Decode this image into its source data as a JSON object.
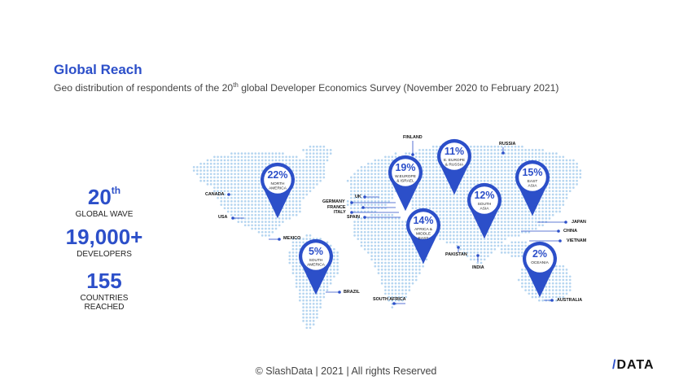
{
  "header": {
    "title": "Global Reach",
    "subtitle_pre": "Geo distribution of respondents of the 20",
    "subtitle_sup": "th",
    "subtitle_post": " global Developer Economics Survey (November 2020 to February 2021)"
  },
  "stats": [
    {
      "value": "20",
      "sup": "th",
      "label": "GLOBAL WAVE"
    },
    {
      "value": "19,000+",
      "sup": "",
      "label": "DEVELOPERS"
    },
    {
      "value": "155",
      "sup": "",
      "label": "COUNTRIES\nREACHED"
    }
  ],
  "regions": [
    {
      "id": "north-america",
      "percent": "22%",
      "name": [
        "NORTH",
        "AMERICA"
      ]
    },
    {
      "id": "south-america",
      "percent": "5%",
      "name": [
        "SOUTH",
        "AMERICA"
      ]
    },
    {
      "id": "w-europe",
      "percent": "19%",
      "name": [
        "W.EUROPE",
        "& ISRAEL"
      ]
    },
    {
      "id": "e-europe",
      "percent": "11%",
      "name": [
        "E. EUROPE",
        "& RUSSIA"
      ]
    },
    {
      "id": "africa",
      "percent": "14%",
      "name": [
        "AFRICA &",
        "MIDDLE",
        "EAST"
      ]
    },
    {
      "id": "south-asia",
      "percent": "12%",
      "name": [
        "SOUTH",
        "ASIA"
      ]
    },
    {
      "id": "east-asia",
      "percent": "15%",
      "name": [
        "EAST",
        "ASIA"
      ]
    },
    {
      "id": "oceania",
      "percent": "2%",
      "name": [
        "OCEANIA"
      ]
    }
  ],
  "countries": [
    "CANADA",
    "USA",
    "MEXICO",
    "BRAZIL",
    "UK",
    "GERMANY",
    "FRANCE",
    "ITALY",
    "SPAIN",
    "FINLAND",
    "SOUTH AFRICA",
    "PAKISTAN",
    "INDIA",
    "RUSSIA",
    "JAPAN",
    "CHINA",
    "VIETNAM",
    "AUSTRALIA"
  ],
  "footer": "© SlashData | 2021 |  All rights Reserved",
  "logo": {
    "slash": "/",
    "text": "DATA"
  },
  "colors": {
    "accent": "#2c4fc9",
    "dots": "#b5d5f0",
    "pin": "#2c4fc9"
  }
}
